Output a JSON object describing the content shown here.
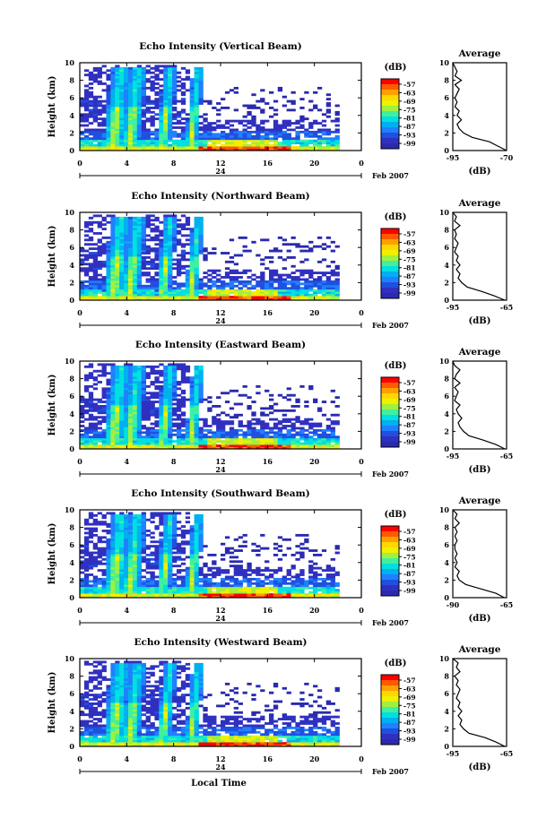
{
  "figure": {
    "local_time_label": "Local Time",
    "avg_unit": "(dB)",
    "cb_unit": "(dB)",
    "date_suffix": "Feb 2007",
    "date_tick": "24",
    "avg_title": "Average"
  },
  "colorbar": {
    "ticks": [
      "-57",
      "-63",
      "-69",
      "-75",
      "-81",
      "-87",
      "-93",
      "-99"
    ],
    "colors": [
      "#ff0000",
      "#ff5a00",
      "#ffa000",
      "#ffd800",
      "#f0f000",
      "#a0f040",
      "#40f0a0",
      "#00e0e0",
      "#00b0f0",
      "#2080ff",
      "#2050e0",
      "#3030c0",
      "#2a2ab0"
    ]
  },
  "chart_data": [
    {
      "type": "heatmap",
      "title": "Echo Intensity (Vertical Beam)",
      "ylabel": "Height (km)",
      "xlabel": "Local Time",
      "x_ticks": [
        "0",
        "4",
        "8",
        "12",
        "16",
        "20",
        "0"
      ],
      "y_ticks": [
        "0",
        "2",
        "4",
        "6",
        "8",
        "10"
      ],
      "xlim": [
        0,
        24
      ],
      "ylim": [
        0,
        10
      ],
      "colorbar_range_db": [
        -99,
        -57
      ],
      "average": {
        "title": "Average",
        "xlabel": "(dB)",
        "x_ticks": [
          "-95",
          "-70"
        ],
        "xlim": [
          -95,
          -70
        ],
        "height_km": [
          0,
          0.5,
          1,
          1.5,
          2,
          2.5,
          3,
          3.5,
          4,
          4.5,
          5,
          5.5,
          6,
          6.5,
          7,
          7.5,
          8,
          8.5,
          9,
          9.5,
          10
        ],
        "db": [
          -70,
          -74,
          -78,
          -86,
          -90,
          -92,
          -93,
          -91,
          -93,
          -92,
          -94,
          -93,
          -94,
          -93,
          -92,
          -94,
          -91,
          -94,
          -93,
          -94,
          -95
        ]
      }
    },
    {
      "type": "heatmap",
      "title": "Echo Intensity (Northward Beam)",
      "ylabel": "Height (km)",
      "xlabel": "Local Time",
      "x_ticks": [
        "0",
        "4",
        "8",
        "12",
        "16",
        "20",
        "0"
      ],
      "y_ticks": [
        "0",
        "2",
        "4",
        "6",
        "8",
        "10"
      ],
      "xlim": [
        0,
        24
      ],
      "ylim": [
        0,
        10
      ],
      "colorbar_range_db": [
        -99,
        -57
      ],
      "average": {
        "title": "Average",
        "xlabel": "(dB)",
        "x_ticks": [
          "-95",
          "-65"
        ],
        "xlim": [
          -95,
          -65
        ],
        "height_km": [
          0,
          0.5,
          1,
          1.5,
          2,
          2.5,
          3,
          3.5,
          4,
          4.5,
          5,
          5.5,
          6,
          6.5,
          7,
          7.5,
          8,
          8.5,
          9,
          9.5,
          10
        ],
        "db": [
          -66,
          -72,
          -79,
          -87,
          -90,
          -92,
          -91,
          -93,
          -91,
          -93,
          -92,
          -94,
          -93,
          -92,
          -94,
          -93,
          -94,
          -91,
          -94,
          -93,
          -95
        ]
      }
    },
    {
      "type": "heatmap",
      "title": "Echo Intensity (Eastward Beam)",
      "ylabel": "Height (km)",
      "xlabel": "Local Time",
      "x_ticks": [
        "0",
        "4",
        "8",
        "12",
        "16",
        "20",
        "0"
      ],
      "y_ticks": [
        "0",
        "2",
        "4",
        "6",
        "8",
        "10"
      ],
      "xlim": [
        0,
        24
      ],
      "ylim": [
        0,
        10
      ],
      "colorbar_range_db": [
        -99,
        -57
      ],
      "average": {
        "title": "Average",
        "xlabel": "(dB)",
        "x_ticks": [
          "-95",
          "-65"
        ],
        "xlim": [
          -95,
          -65
        ],
        "height_km": [
          0,
          0.5,
          1,
          1.5,
          2,
          2.5,
          3,
          3.5,
          4,
          4.5,
          5,
          5.5,
          6,
          6.5,
          7,
          7.5,
          8,
          8.5,
          9,
          9.5,
          10
        ],
        "db": [
          -66,
          -71,
          -78,
          -86,
          -89,
          -91,
          -92,
          -90,
          -92,
          -93,
          -91,
          -94,
          -93,
          -92,
          -94,
          -91,
          -94,
          -93,
          -91,
          -94,
          -95
        ]
      }
    },
    {
      "type": "heatmap",
      "title": "Echo Intensity (Southward Beam)",
      "ylabel": "Height (km)",
      "xlabel": "Local Time",
      "x_ticks": [
        "0",
        "4",
        "8",
        "12",
        "16",
        "20",
        "0"
      ],
      "y_ticks": [
        "0",
        "2",
        "4",
        "6",
        "8",
        "10"
      ],
      "xlim": [
        0,
        24
      ],
      "ylim": [
        0,
        10
      ],
      "colorbar_range_db": [
        -99,
        -57
      ],
      "average": {
        "title": "Average",
        "xlabel": "(dB)",
        "x_ticks": [
          "-90",
          "-65"
        ],
        "xlim": [
          -90,
          -65
        ],
        "height_km": [
          0,
          0.5,
          1,
          1.5,
          2,
          2.5,
          3,
          3.5,
          4,
          4.5,
          5,
          5.5,
          6,
          6.5,
          7,
          7.5,
          8,
          8.5,
          9,
          9.5,
          10
        ],
        "db": [
          -66,
          -70,
          -77,
          -84,
          -87,
          -88,
          -87,
          -89,
          -88,
          -89,
          -88,
          -89,
          -89,
          -88,
          -89,
          -88,
          -89,
          -87,
          -89,
          -88,
          -90
        ]
      }
    },
    {
      "type": "heatmap",
      "title": "Echo Intensity (Westward Beam)",
      "ylabel": "Height (km)",
      "xlabel": "Local Time",
      "x_ticks": [
        "0",
        "4",
        "8",
        "12",
        "16",
        "20",
        "0"
      ],
      "y_ticks": [
        "0",
        "2",
        "4",
        "6",
        "8",
        "10"
      ],
      "xlim": [
        0,
        24
      ],
      "ylim": [
        0,
        10
      ],
      "colorbar_range_db": [
        -99,
        -57
      ],
      "average": {
        "title": "Average",
        "xlabel": "(dB)",
        "x_ticks": [
          "-95",
          "-65"
        ],
        "xlim": [
          -95,
          -65
        ],
        "height_km": [
          0,
          0.5,
          1,
          1.5,
          2,
          2.5,
          3,
          3.5,
          4,
          4.5,
          5,
          5.5,
          6,
          6.5,
          7,
          7.5,
          8,
          8.5,
          9,
          9.5,
          10
        ],
        "db": [
          -66,
          -71,
          -77,
          -86,
          -89,
          -91,
          -90,
          -92,
          -90,
          -92,
          -91,
          -93,
          -92,
          -91,
          -93,
          -92,
          -94,
          -91,
          -93,
          -92,
          -95
        ]
      }
    }
  ]
}
